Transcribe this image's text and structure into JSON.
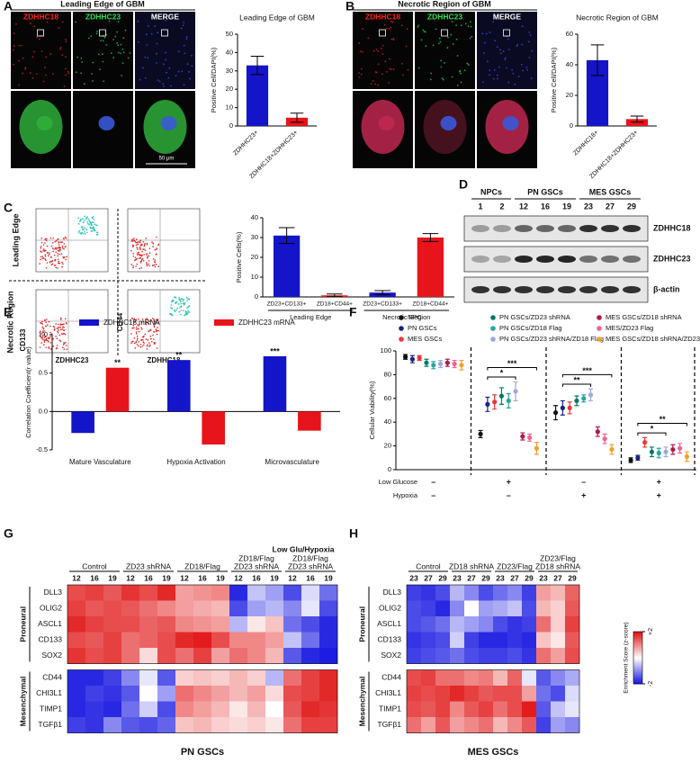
{
  "figure": {
    "panel_labels": [
      "A",
      "B",
      "C",
      "D",
      "E",
      "F",
      "G",
      "H"
    ],
    "microscopy": [
      {
        "title": "Leading Edge of GBM",
        "channels": [
          "ZDHHC18",
          "ZDHHC23",
          "MERGE"
        ],
        "scale_bar": "50 μm"
      },
      {
        "title": "Necrotic Region of GBM",
        "channels": [
          "ZDHHC18",
          "ZDHHC23",
          "MERGE"
        ]
      }
    ],
    "flow": {
      "rows": [
        "Leading Edge",
        "Necrotic Region"
      ],
      "y_labels": [
        "CD133",
        "CD44"
      ],
      "x_labels": [
        "ZDHHC23",
        "ZDHHC18"
      ]
    },
    "blot": {
      "groups": [
        {
          "label": "NPCs",
          "lanes": [
            "1",
            "2"
          ]
        },
        {
          "label": "PN GSCs",
          "lanes": [
            "12",
            "16",
            "19"
          ]
        },
        {
          "label": "MES GSCs",
          "lanes": [
            "23",
            "27",
            "29"
          ]
        }
      ],
      "bands": [
        "ZDHHC18",
        "ZDHHC23",
        "β-actin"
      ]
    }
  },
  "chart_data": [
    {
      "type": "bar",
      "title": "Leading Edge of GBM",
      "ylabel": "Positive Cell/DAPI(%)",
      "categories": [
        "ZDHHC23+",
        "ZDHHC18+ZDHHC23+"
      ],
      "values": [
        33,
        4.5
      ],
      "errors": [
        5,
        2.5
      ],
      "colors": [
        "#1414c8",
        "#e8141b"
      ],
      "ylim": [
        0,
        50
      ],
      "yticks": [
        0,
        10,
        20,
        30,
        40,
        50
      ]
    },
    {
      "type": "bar",
      "title": "Necrotic Region of GBM",
      "ylabel": "Positive Cell/DAPI(%)",
      "categories": [
        "ZDHHC18+",
        "ZDHHC18+ZDHHC23+"
      ],
      "values": [
        43,
        4.5
      ],
      "errors": [
        10,
        2
      ],
      "colors": [
        "#1414c8",
        "#e8141b"
      ],
      "ylim": [
        0,
        60
      ],
      "yticks": [
        0,
        20,
        40,
        60
      ]
    },
    {
      "type": "bar",
      "ylabel": "Positive Cells(%)",
      "categories": [
        "ZD23+CD133+",
        "ZD18+CD44+",
        "ZD23+CD133+",
        "ZD18+CD44+"
      ],
      "groups": [
        "Leading Edge",
        "Necrotic Region"
      ],
      "values": [
        31,
        0.8,
        2.2,
        30
      ],
      "errors": [
        4,
        0.7,
        1,
        2
      ],
      "colors": [
        "#1414c8",
        "#e8141b",
        "#1414c8",
        "#e8141b"
      ],
      "ylim": [
        0,
        40
      ],
      "yticks": [
        0,
        10,
        20,
        30,
        40
      ]
    },
    {
      "type": "bar",
      "ylabel": "Correlation Coefficient(r value)",
      "categories": [
        "Mature Vasculature",
        "Hypoxia Activation",
        "Microvasculature"
      ],
      "legend": "top",
      "series": [
        {
          "name": "ZDHHC18 mRNA",
          "color": "#1414c8",
          "values": [
            -0.28,
            0.67,
            0.72
          ],
          "significance": [
            null,
            "**",
            "***"
          ]
        },
        {
          "name": "ZDHHC23 mRNA",
          "color": "#e8141b",
          "values": [
            0.57,
            -0.43,
            -0.25
          ],
          "significance": [
            "**",
            null,
            null
          ]
        }
      ],
      "ylim": [
        -0.5,
        1
      ],
      "yticks": [
        -0.5,
        {
          "value": 0,
          "label": "0.0"
        },
        0.5,
        {
          "value": 1,
          "label": "1.0"
        }
      ]
    },
    {
      "type": "dot",
      "ylabel": "Cellular Viability(%)",
      "legend": "top",
      "ylim": [
        0,
        100
      ],
      "yticks": [
        0,
        20,
        40,
        60,
        80,
        100
      ],
      "conditions": [
        {
          "label": "Low Glucose",
          "levels": [
            "–",
            "+",
            "–",
            "+"
          ]
        },
        {
          "label": "Hypoxia",
          "levels": [
            "–",
            "–",
            "+",
            "+"
          ]
        }
      ],
      "significance": [
        [],
        [
          "*",
          "***"
        ],
        [
          "**",
          "***"
        ],
        [
          "*",
          "**"
        ]
      ],
      "series": [
        {
          "name": "NPC",
          "color": "#111111",
          "values": [
            95,
            30,
            48,
            8
          ],
          "errors": [
            2,
            3,
            6,
            2
          ]
        },
        {
          "name": "PN GSCs",
          "color": "#1a237e",
          "values": [
            93,
            55,
            52,
            10
          ],
          "errors": [
            3,
            6,
            6,
            2
          ]
        },
        {
          "name": "MES GSCs",
          "color": "#e53935",
          "values": [
            94,
            57,
            52,
            23
          ],
          "errors": [
            2,
            6,
            5,
            4
          ]
        },
        {
          "name": "PN GSCs/ZD23 shRNA",
          "color": "#00796b",
          "values": [
            90,
            62,
            58,
            15
          ],
          "errors": [
            3,
            7,
            4,
            4
          ]
        },
        {
          "name": "PN GSCs/ZD18 Flag",
          "color": "#26a69a",
          "values": [
            88,
            58,
            60,
            14
          ],
          "errors": [
            3,
            6,
            3,
            4
          ]
        },
        {
          "name": "PN GSCs/ZD23 shRNA/ZD18 Flag",
          "color": "#9fa8da",
          "values": [
            89,
            66,
            63,
            15
          ],
          "errors": [
            3,
            8,
            5,
            4
          ]
        },
        {
          "name": "MES GSCs/ZD18 shRNA",
          "color": "#b0194a",
          "values": [
            90,
            28,
            32,
            17
          ],
          "errors": [
            3,
            3,
            4,
            4
          ]
        },
        {
          "name": "MES/ZD23 Flag",
          "color": "#f06292",
          "values": [
            89,
            27,
            26,
            18
          ],
          "errors": [
            3,
            3,
            4,
            4
          ]
        },
        {
          "name": "MES GSCs/ZD18 shRNA/ZD23 Flag",
          "color": "#f0a030",
          "values": [
            88,
            18,
            17,
            11
          ],
          "errors": [
            4,
            5,
            4,
            4
          ]
        }
      ]
    },
    {
      "type": "heatmap",
      "xlabel": "PN GSCs",
      "zlim": [
        -2,
        2
      ],
      "colors": [
        "#1010e0",
        "#ffffff",
        "#e01010"
      ],
      "column_groups": [
        {
          "label": [
            "Control"
          ],
          "columns": [
            "12",
            "16",
            "19"
          ]
        },
        {
          "label": [
            "ZD23 shRNA"
          ],
          "columns": [
            "12",
            "16",
            "19"
          ]
        },
        {
          "label": [
            "ZD18/Flag"
          ],
          "columns": [
            "12",
            "16",
            "19"
          ]
        },
        {
          "label": [
            "ZD18/Flag",
            "ZD23 shRNA"
          ],
          "columns": [
            "12",
            "16",
            "19"
          ]
        },
        {
          "super_label": "Low Glu/Hypoxia",
          "label": [
            "ZD18/Flag",
            "ZD23 shRNA"
          ],
          "columns": [
            "12",
            "16",
            "19"
          ]
        }
      ],
      "row_groups": [
        {
          "label": "Proneural",
          "rows": [
            "DLL3",
            "OLIG2",
            "ASCL1",
            "CD133",
            "SOX2"
          ],
          "values": [
            [
              1.5,
              1.6,
              1.4,
              1.7,
              1.5,
              1.8,
              0.8,
              0.9,
              1.0,
              -1.8,
              -0.5,
              -0.8,
              -1.5,
              -0.3,
              -1.2
            ],
            [
              1.6,
              1.4,
              1.5,
              1.4,
              1.2,
              1.0,
              0.8,
              0.7,
              0.6,
              -1.5,
              -0.8,
              -0.6,
              -1.0,
              -0.2,
              -1.5
            ],
            [
              1.8,
              1.6,
              1.5,
              1.5,
              1.3,
              1.4,
              1.0,
              0.9,
              0.8,
              -0.6,
              0.2,
              0.5,
              -1.2,
              -1.5,
              -1.8
            ],
            [
              1.5,
              1.4,
              1.6,
              1.2,
              1.3,
              1.5,
              1.8,
              1.9,
              1.5,
              1.0,
              1.0,
              0.8,
              -0.5,
              -1.2,
              -1.8
            ],
            [
              1.7,
              1.5,
              1.6,
              1.2,
              0.3,
              1.5,
              1.2,
              1.6,
              0.8,
              1.2,
              1.0,
              0.6,
              -1.4,
              -1.8,
              -1.9
            ]
          ]
        },
        {
          "label": "Mesenchymal",
          "rows": [
            "CD44",
            "CHI3L1",
            "TIMP1",
            "TGFβ1"
          ],
          "values": [
            [
              -1.8,
              -1.8,
              -1.6,
              -1.0,
              -0.2,
              -1.4,
              0.4,
              0.5,
              0.4,
              0.6,
              0.4,
              -0.6,
              1.2,
              1.6,
              1.8
            ],
            [
              -1.8,
              -1.6,
              -1.7,
              -1.4,
              0.0,
              -0.8,
              1.2,
              1.0,
              0.8,
              0.6,
              0.8,
              0.3,
              1.5,
              1.6,
              1.8
            ],
            [
              -1.8,
              -1.7,
              -1.8,
              -1.2,
              -0.4,
              -1.5,
              1.0,
              0.8,
              0.6,
              0.2,
              0.6,
              0.0,
              1.4,
              1.8,
              1.7
            ],
            [
              -1.6,
              -1.7,
              -1.0,
              -1.4,
              -1.5,
              -1.3,
              0.5,
              0.6,
              0.4,
              0.3,
              0.4,
              0.2,
              1.2,
              1.6,
              1.6
            ]
          ]
        }
      ]
    },
    {
      "type": "heatmap",
      "xlabel": "MES GSCs",
      "zlim": [
        -2,
        2
      ],
      "colors": [
        "#1010e0",
        "#ffffff",
        "#e01010"
      ],
      "colorbar": {
        "title": "Enrichment Score (z-score)",
        "ticks": [
          {
            "value": 2,
            "label": "+2"
          },
          {
            "value": -2,
            "label": "-2"
          }
        ]
      },
      "column_groups": [
        {
          "label": [
            "Control"
          ],
          "columns": [
            "23",
            "27",
            "29"
          ]
        },
        {
          "label": [
            "ZD18 shRNA"
          ],
          "columns": [
            "23",
            "27",
            "29"
          ]
        },
        {
          "label": [
            "ZD23/Flag"
          ],
          "columns": [
            "23",
            "27",
            "29"
          ]
        },
        {
          "label": [
            "ZD23/Flag",
            "ZD18 shRNA"
          ],
          "columns": [
            "23",
            "27",
            "29"
          ]
        }
      ],
      "row_groups": [
        {
          "label": "Proneural",
          "rows": [
            "DLL3",
            "OLIG2",
            "ASCL1",
            "CD133",
            "SOX2"
          ],
          "values": [
            [
              -1.6,
              -1.7,
              -1.5,
              -0.6,
              -1.0,
              -1.5,
              -1.2,
              -1.0,
              -1.6,
              0.8,
              0.6,
              1.3
            ],
            [
              -1.5,
              -1.6,
              -1.8,
              -1.0,
              0.0,
              -0.8,
              -0.7,
              -0.5,
              -1.5,
              0.6,
              0.4,
              1.4
            ],
            [
              -1.5,
              -1.4,
              -1.2,
              -0.6,
              -0.8,
              -1.0,
              -1.5,
              -1.7,
              -1.6,
              1.2,
              0.4,
              1.6
            ],
            [
              -1.7,
              -1.6,
              -1.5,
              -0.4,
              -1.6,
              -1.8,
              -1.8,
              -1.7,
              -1.8,
              0.5,
              0.2,
              1.4
            ],
            [
              -1.6,
              -1.5,
              -1.4,
              -1.2,
              -1.5,
              -1.6,
              -1.6,
              -1.5,
              -1.7,
              1.2,
              0.8,
              1.5
            ]
          ]
        },
        {
          "label": "Mesenchymal",
          "rows": [
            "CD44",
            "CHI3L1",
            "TIMP1",
            "TGFβ1"
          ],
          "values": [
            [
              1.5,
              1.6,
              1.2,
              1.2,
              1.0,
              1.1,
              0.6,
              1.3,
              -0.2,
              -1.4,
              -1.0,
              -0.7
            ],
            [
              1.6,
              1.5,
              1.6,
              1.8,
              1.6,
              1.4,
              1.5,
              1.5,
              0.8,
              -1.2,
              -1.5,
              -0.3
            ],
            [
              1.5,
              1.4,
              1.6,
              1.0,
              1.4,
              1.6,
              1.2,
              1.5,
              1.9,
              -1.4,
              -0.5,
              -0.2
            ],
            [
              1.2,
              0.8,
              1.4,
              0.8,
              1.0,
              1.2,
              0.6,
              1.0,
              1.4,
              -1.6,
              -0.8,
              -1.0
            ]
          ]
        }
      ]
    }
  ]
}
